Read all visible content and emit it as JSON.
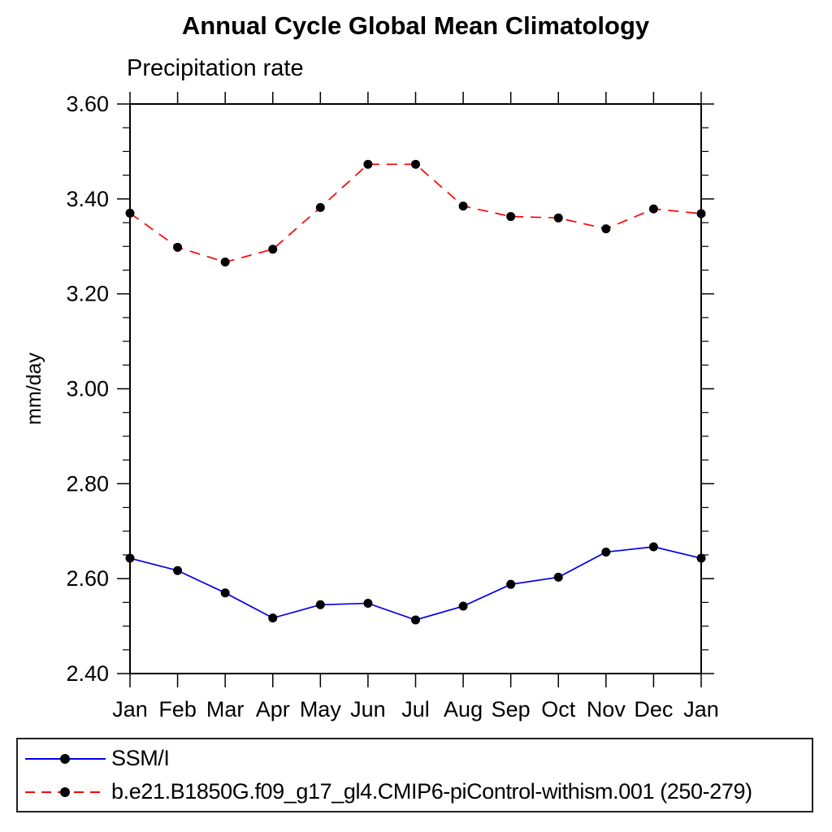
{
  "page": {
    "background": "#ffffff"
  },
  "chart_data": {
    "type": "line",
    "title": "Annual Cycle Global Mean Climatology",
    "subtitle": "Precipitation rate",
    "ylabel": "mm/day",
    "xlabel": "",
    "categories": [
      "Jan",
      "Feb",
      "Mar",
      "Apr",
      "May",
      "Jun",
      "Jul",
      "Aug",
      "Sep",
      "Oct",
      "Nov",
      "Dec",
      "Jan"
    ],
    "ylim": [
      2.4,
      3.6
    ],
    "ytick_labels": [
      "2.40",
      "2.60",
      "2.80",
      "3.00",
      "3.20",
      "3.40",
      "3.60"
    ],
    "ymajor_step": 0.2,
    "yminor_step": 0.05,
    "grid": false,
    "legend_position": "bottom-box",
    "axis_color": "#000000",
    "marker_shape": "filled-circle",
    "series": [
      {
        "name": "SSM/I",
        "color": "#0000ee",
        "line_style": "solid",
        "marker_color": "#000000",
        "values": [
          2.643,
          2.617,
          2.57,
          2.517,
          2.545,
          2.548,
          2.513,
          2.542,
          2.588,
          2.603,
          2.656,
          2.667,
          2.643
        ]
      },
      {
        "name": "b.e21.B1850G.f09_g17_gl4.CMIP6-piControl-withism.001 (250-279)",
        "color": "#ff0000",
        "line_style": "dashed",
        "marker_color": "#000000",
        "values": [
          3.37,
          3.298,
          3.267,
          3.294,
          3.382,
          3.473,
          3.473,
          3.385,
          3.363,
          3.36,
          3.337,
          3.379,
          3.369
        ]
      }
    ]
  }
}
